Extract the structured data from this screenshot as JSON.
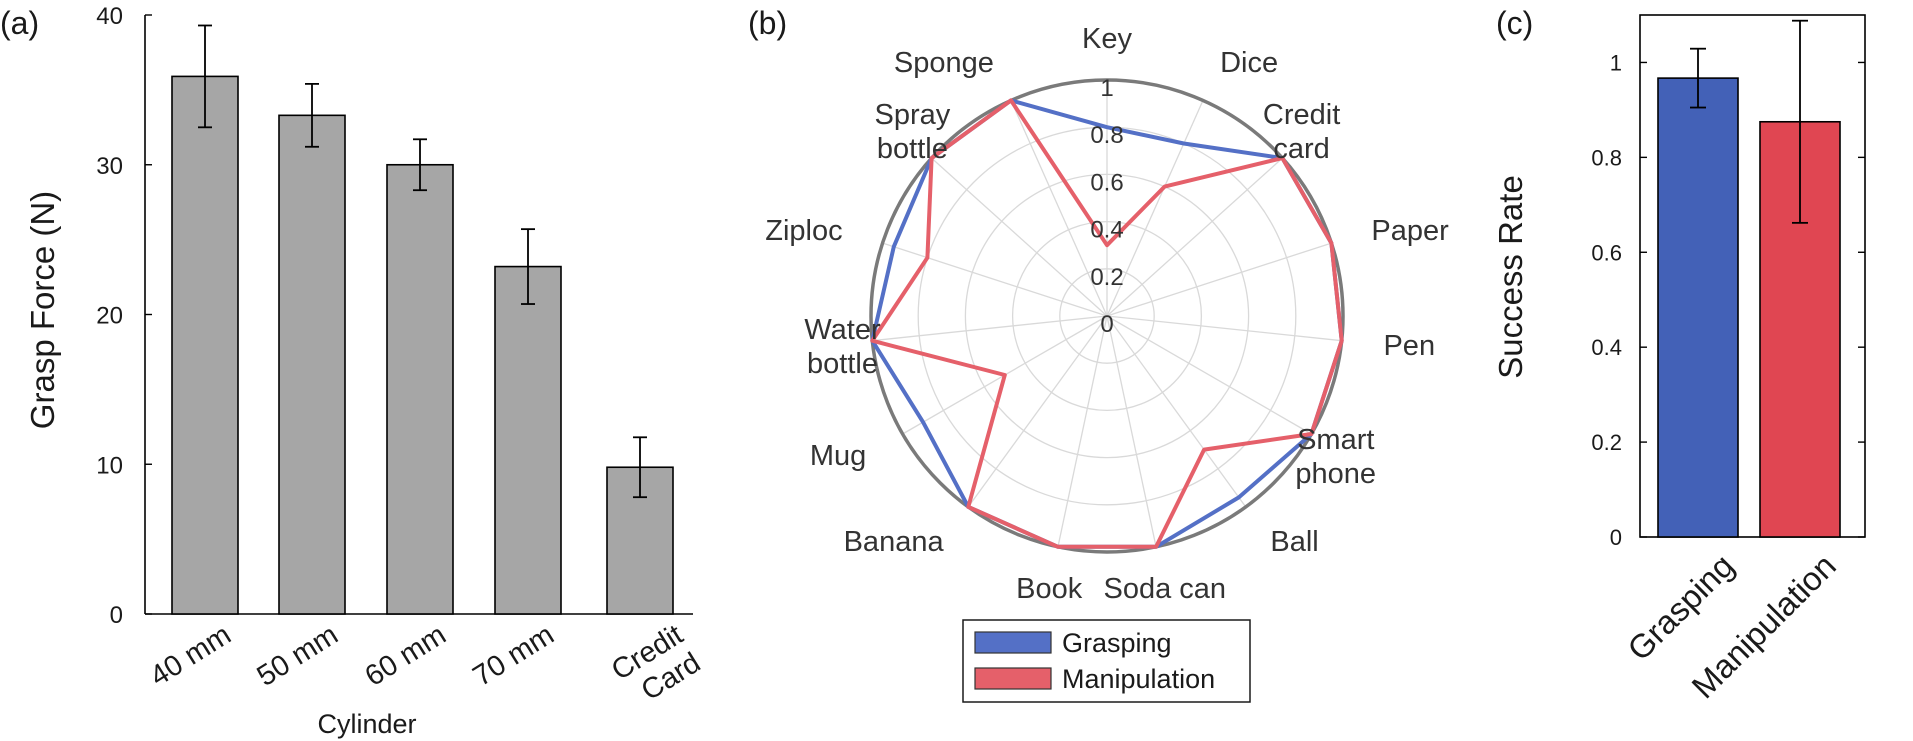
{
  "chart_data": [
    {
      "panel_label": "(a)",
      "type": "bar",
      "categories": [
        "40 mm",
        "50 mm",
        "60 mm",
        "70 mm",
        "Credit Card"
      ],
      "values": [
        35.9,
        33.3,
        30.0,
        23.2,
        9.8
      ],
      "errors": [
        3.4,
        2.1,
        1.7,
        2.5,
        2.0
      ],
      "xlabel": "Cylinder",
      "ylabel": "Grasp Force (N)",
      "ylim": [
        0,
        40
      ],
      "yticks": [
        0,
        10,
        20,
        30,
        40
      ],
      "bar_color": "#a6a6a6"
    },
    {
      "panel_label": "(b)",
      "type": "radar",
      "categories": [
        "Key",
        "Dice",
        "Credit card",
        "Paper",
        "Pen",
        "Smart phone",
        "Ball",
        "Soda can",
        "Book",
        "Banana",
        "Mug",
        "Water bottle",
        "Ziploc",
        "Spray bottle",
        "Sponge"
      ],
      "rticks": [
        "0",
        "0.2",
        "0.4",
        "0.6",
        "0.8",
        "1"
      ],
      "rlim": [
        0,
        1
      ],
      "series": [
        {
          "name": "Grasping",
          "color": "#5470c6",
          "values": [
            0.8,
            0.8,
            1.0,
            1.0,
            1.0,
            1.0,
            0.95,
            1.0,
            1.0,
            1.0,
            0.9,
            1.0,
            0.95,
            1.0,
            1.0
          ]
        },
        {
          "name": "Manipulation",
          "color": "#e5606a",
          "values": [
            0.3,
            0.6,
            1.0,
            1.0,
            1.0,
            1.0,
            0.7,
            1.0,
            1.0,
            1.0,
            0.5,
            1.0,
            0.8,
            1.0,
            1.0
          ]
        }
      ],
      "legend": "bottom"
    },
    {
      "panel_label": "(c)",
      "type": "bar",
      "categories": [
        "Grasping",
        "Manipulation"
      ],
      "values": [
        0.967,
        0.875
      ],
      "errors": [
        0.062,
        0.213
      ],
      "colors": [
        "#4361b7",
        "#e04652"
      ],
      "ylabel": "Success Rate",
      "ylim": [
        0,
        1.1
      ],
      "yticks": [
        "0",
        "0.2",
        "0.4",
        "0.6",
        "0.8",
        "1"
      ]
    }
  ]
}
